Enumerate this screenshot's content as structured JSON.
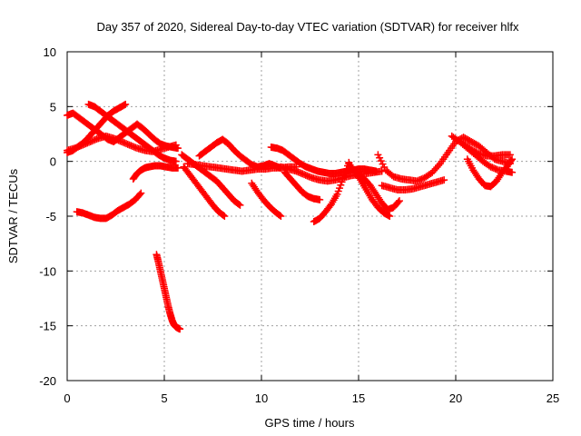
{
  "chart_data": {
    "type": "scatter",
    "title": "Day 357 of 2020, Sidereal Day-to-day VTEC variation (SDTVAR) for receiver hlfx",
    "xlabel": "GPS time / hours",
    "ylabel": "SDTVAR / TECUs",
    "xlim": [
      0,
      25
    ],
    "ylim": [
      -20,
      10
    ],
    "xticks": [
      0,
      5,
      10,
      15,
      20,
      25
    ],
    "yticks": [
      10,
      5,
      0,
      -5,
      -10,
      -15,
      -20
    ],
    "grid": true,
    "marker": "+",
    "color": "#ff0000",
    "series": [
      {
        "name": "s1",
        "x": [
          0.0,
          0.3,
          0.6,
          0.9,
          1.2,
          1.5,
          1.8,
          2.1,
          2.4,
          2.7,
          3.0,
          3.3,
          3.6,
          3.9,
          4.2,
          4.5,
          4.8,
          5.1,
          5.4,
          5.7
        ],
        "y": [
          4.2,
          4.4,
          4.0,
          3.6,
          3.2,
          2.8,
          2.4,
          2.0,
          1.8,
          2.2,
          2.6,
          3.0,
          3.4,
          3.0,
          2.5,
          2.0,
          1.6,
          1.4,
          1.3,
          1.2
        ]
      },
      {
        "name": "s2",
        "x": [
          0.0,
          0.3,
          0.6,
          0.9,
          1.2,
          1.5,
          1.8,
          2.1,
          2.4,
          2.7,
          3.0
        ],
        "y": [
          0.8,
          1.0,
          1.4,
          1.8,
          2.4,
          3.0,
          3.6,
          4.2,
          4.6,
          4.9,
          5.2
        ]
      },
      {
        "name": "s3",
        "x": [
          0.0,
          0.4,
          0.8,
          1.2,
          1.6,
          2.0,
          2.4,
          2.8,
          3.2,
          3.6,
          4.0,
          4.4,
          4.8,
          5.2,
          5.6
        ],
        "y": [
          1.0,
          1.2,
          1.5,
          1.8,
          2.1,
          2.3,
          2.1,
          1.8,
          1.5,
          1.2,
          1.0,
          0.9,
          1.1,
          1.3,
          1.5
        ]
      },
      {
        "name": "s4",
        "x": [
          1.1,
          1.4,
          1.7,
          2.0,
          2.3,
          2.6,
          2.9,
          3.2,
          3.5,
          3.8,
          4.1,
          4.4,
          4.7,
          5.0,
          5.3,
          5.6
        ],
        "y": [
          5.2,
          5.0,
          4.6,
          4.2,
          3.8,
          3.4,
          3.0,
          2.6,
          2.2,
          1.8,
          1.4,
          1.0,
          0.6,
          0.3,
          0.1,
          0.0
        ]
      },
      {
        "name": "s5",
        "x": [
          0.5,
          0.8,
          1.1,
          1.4,
          1.7,
          2.0,
          2.3,
          2.6,
          2.9,
          3.2,
          3.5,
          3.8
        ],
        "y": [
          -4.6,
          -4.7,
          -4.9,
          -5.1,
          -5.2,
          -5.2,
          -4.9,
          -4.5,
          -4.2,
          -3.9,
          -3.5,
          -2.9
        ]
      },
      {
        "name": "s6",
        "x": [
          3.4,
          3.6,
          3.8,
          4.0,
          4.2,
          4.5,
          4.8,
          5.1,
          5.4,
          5.7
        ],
        "y": [
          -1.6,
          -1.1,
          -0.8,
          -0.6,
          -0.5,
          -0.4,
          -0.4,
          -0.5,
          -0.6,
          -0.6
        ]
      },
      {
        "name": "s7",
        "x": [
          4.6,
          4.7,
          4.8,
          4.9,
          5.0,
          5.1,
          5.2,
          5.3,
          5.4,
          5.5,
          5.6,
          5.7,
          5.8
        ],
        "y": [
          -8.5,
          -9.2,
          -10.0,
          -10.8,
          -11.6,
          -12.4,
          -13.2,
          -13.9,
          -14.5,
          -14.9,
          -15.1,
          -15.2,
          -15.3
        ]
      },
      {
        "name": "s8",
        "x": [
          6.0,
          6.3,
          6.6,
          6.9,
          7.2,
          7.5,
          7.8,
          8.1
        ],
        "y": [
          -0.5,
          -1.2,
          -1.9,
          -2.6,
          -3.3,
          -4.0,
          -4.6,
          -5.0
        ]
      },
      {
        "name": "s9",
        "x": [
          5.9,
          6.2,
          6.5,
          6.8,
          7.1,
          7.4,
          7.7,
          8.0,
          8.3,
          8.6,
          8.9
        ],
        "y": [
          0.6,
          0.2,
          -0.2,
          -0.6,
          -1.0,
          -1.4,
          -1.8,
          -2.4,
          -3.0,
          -3.6,
          -4.0
        ]
      },
      {
        "name": "s10",
        "x": [
          6.2,
          6.6,
          7.0,
          7.4,
          7.8,
          8.2,
          8.6,
          9.0,
          9.4,
          9.8,
          10.2,
          10.6,
          11.0,
          11.4,
          11.8
        ],
        "y": [
          -0.2,
          -0.3,
          -0.4,
          -0.5,
          -0.6,
          -0.7,
          -0.8,
          -0.9,
          -0.8,
          -0.7,
          -0.7,
          -0.6,
          -0.6,
          -0.5,
          -0.5
        ]
      },
      {
        "name": "s11",
        "x": [
          6.8,
          7.1,
          7.4,
          7.7,
          8.0,
          8.3,
          8.6,
          8.9,
          9.2,
          9.5,
          9.8,
          10.1,
          10.4,
          10.7,
          11.0
        ],
        "y": [
          0.5,
          0.9,
          1.3,
          1.7,
          2.0,
          1.6,
          1.0,
          0.5,
          0.1,
          -0.3,
          -0.5,
          -0.4,
          -0.2,
          -0.4,
          -0.6
        ]
      },
      {
        "name": "s12",
        "x": [
          9.5,
          9.8,
          10.1,
          10.4,
          10.7,
          11.0
        ],
        "y": [
          -2.0,
          -2.8,
          -3.5,
          -4.1,
          -4.6,
          -5.0
        ]
      },
      {
        "name": "s13",
        "x": [
          10.5,
          10.8,
          11.1,
          11.4,
          11.7,
          12.0,
          12.3,
          12.6,
          12.9,
          13.2,
          13.5,
          13.8,
          14.1,
          14.4,
          14.7,
          15.0,
          15.3,
          15.6,
          15.9
        ],
        "y": [
          1.3,
          1.2,
          1.0,
          0.6,
          0.2,
          -0.2,
          -0.5,
          -0.7,
          -0.9,
          -1.0,
          -1.1,
          -1.1,
          -1.0,
          -0.9,
          -0.8,
          -0.7,
          -0.7,
          -0.8,
          -0.9
        ]
      },
      {
        "name": "s14",
        "x": [
          11.0,
          11.4,
          11.8,
          12.2,
          12.6,
          13.0,
          13.4,
          13.8,
          14.2,
          14.6,
          15.0,
          15.4,
          15.8,
          16.2
        ],
        "y": [
          -0.5,
          -0.7,
          -0.9,
          -1.2,
          -1.5,
          -1.7,
          -1.8,
          -1.7,
          -1.5,
          -1.3,
          -1.2,
          -1.1,
          -1.0,
          -0.9
        ]
      },
      {
        "name": "s15",
        "x": [
          11.2,
          11.5,
          11.8,
          12.1,
          12.4,
          12.7,
          13.0
        ],
        "y": [
          -1.0,
          -1.6,
          -2.2,
          -2.8,
          -3.2,
          -3.4,
          -3.5
        ]
      },
      {
        "name": "s16",
        "x": [
          12.7,
          13.0,
          13.3,
          13.6,
          13.9,
          14.2,
          14.5
        ],
        "y": [
          -5.5,
          -5.2,
          -4.6,
          -3.9,
          -3.0,
          -1.6,
          -0.1
        ]
      },
      {
        "name": "s17",
        "x": [
          14.5,
          14.8,
          15.1,
          15.4,
          15.7,
          16.0,
          16.3,
          16.6
        ],
        "y": [
          -0.2,
          -0.9,
          -1.7,
          -2.6,
          -3.5,
          -4.2,
          -4.7,
          -5.0
        ]
      },
      {
        "name": "s18",
        "x": [
          15.0,
          15.3,
          15.6,
          15.9,
          16.2,
          16.5,
          16.8,
          17.1
        ],
        "y": [
          -1.2,
          -1.6,
          -2.2,
          -3.0,
          -3.8,
          -4.4,
          -4.2,
          -3.6
        ]
      },
      {
        "name": "s19",
        "x": [
          16.0,
          16.4,
          16.8,
          17.2,
          17.6,
          18.0,
          18.4,
          18.8,
          19.2,
          19.6,
          20.0,
          20.4,
          20.8,
          21.2,
          21.6,
          22.0,
          22.4,
          22.8
        ],
        "y": [
          0.6,
          -0.8,
          -1.4,
          -1.6,
          -1.7,
          -1.8,
          -1.5,
          -1.0,
          -0.2,
          0.8,
          1.8,
          2.2,
          1.8,
          1.4,
          0.8,
          0.2,
          0.0,
          -0.2
        ]
      },
      {
        "name": "s20",
        "x": [
          16.2,
          16.6,
          17.0,
          17.4,
          17.8,
          18.2,
          18.6,
          19.0,
          19.4
        ],
        "y": [
          -2.2,
          -2.4,
          -2.6,
          -2.6,
          -2.5,
          -2.3,
          -2.1,
          -1.9,
          -1.7
        ]
      },
      {
        "name": "s21",
        "x": [
          19.8,
          20.2,
          20.6,
          21.0,
          21.4,
          21.8,
          22.2,
          22.6,
          22.9
        ],
        "y": [
          2.3,
          1.8,
          1.2,
          0.6,
          0.0,
          -0.5,
          -0.8,
          -0.9,
          -1.0
        ]
      },
      {
        "name": "s22",
        "x": [
          20.6,
          20.9,
          21.2,
          21.5,
          21.8,
          22.1,
          22.4,
          22.7,
          22.9
        ],
        "y": [
          0.2,
          -0.8,
          -1.6,
          -2.2,
          -2.3,
          -1.8,
          -1.0,
          -0.3,
          0.2
        ]
      },
      {
        "name": "s23",
        "x": [
          20.4,
          20.8,
          21.2,
          21.6,
          22.0,
          22.4,
          22.8
        ],
        "y": [
          1.6,
          1.1,
          0.7,
          0.5,
          0.5,
          0.6,
          0.6
        ]
      }
    ]
  }
}
